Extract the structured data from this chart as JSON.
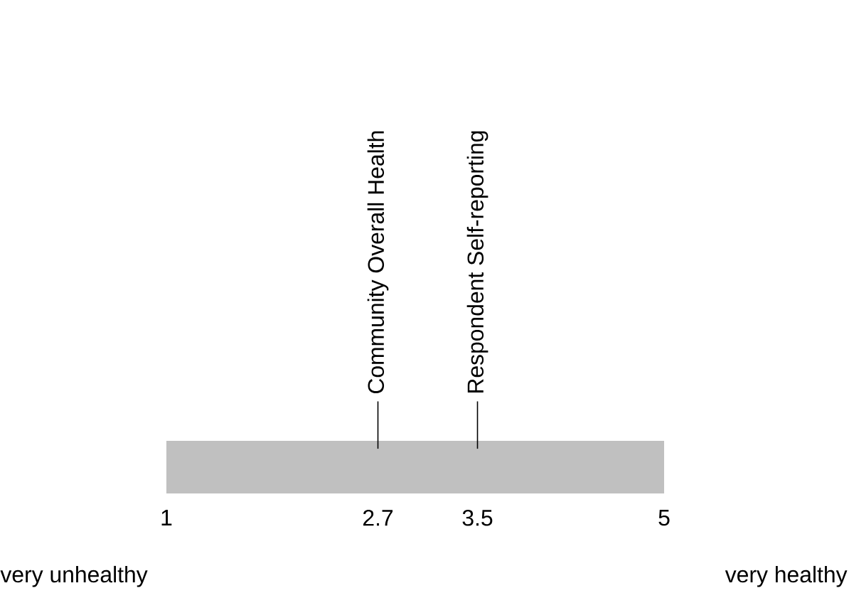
{
  "chart_data": {
    "type": "bar",
    "orientation": "horizontal",
    "categories": [
      null
    ],
    "base": [
      1
    ],
    "values": [
      4
    ],
    "color": "#c0c0c0",
    "xlim": [
      1,
      5
    ],
    "xticks": [
      1,
      2.7,
      3.5,
      5
    ],
    "tick_labels": "x",
    "ref_lines": [
      {
        "axis": "x",
        "value": 2.7,
        "label": "Community Overall Health"
      },
      {
        "axis": "x",
        "value": 3.5,
        "label": "Respondent Self-reporting"
      }
    ],
    "annotations": [
      "very unhealthy",
      "very healthy"
    ]
  }
}
